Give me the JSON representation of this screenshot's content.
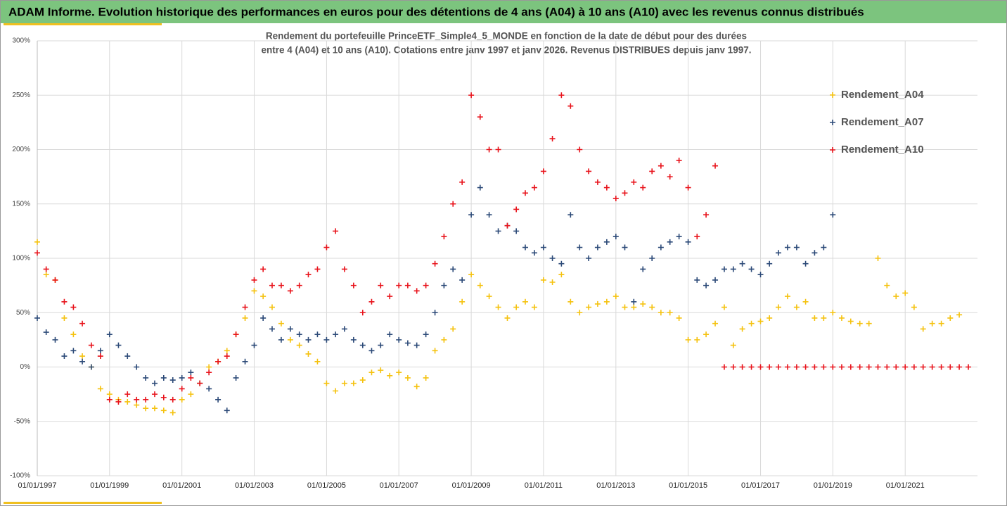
{
  "chart_data": {
    "type": "scatter",
    "title": "ADAM Informe. Evolution historique des performances en euros pour des détentions de 4 ans (A04) à 10 ans (A10) avec les revenus connus distribués",
    "subtitle": [
      "Rendement du portefeuille PrinceETF_Simple4_5_MONDE  en fonction de la date de début pour des durées",
      "entre 4 (A04) et 10 ans (A10). Cotations entre janv 1997 et janv 2026. Revenus DISTRIBUES depuis janv 1997."
    ],
    "x": [
      "1997-01-01",
      "1997-04-01",
      "1997-07-01",
      "1997-10-01",
      "1998-01-01",
      "1998-04-01",
      "1998-07-01",
      "1998-10-01",
      "1999-01-01",
      "1999-04-01",
      "1999-07-01",
      "1999-10-01",
      "2000-01-01",
      "2000-04-01",
      "2000-07-01",
      "2000-10-01",
      "2001-01-01",
      "2001-04-01",
      "2001-07-01",
      "2001-10-01",
      "2002-01-01",
      "2002-04-01",
      "2002-07-01",
      "2002-10-01",
      "2003-01-01",
      "2003-04-01",
      "2003-07-01",
      "2003-10-01",
      "2004-01-01",
      "2004-04-01",
      "2004-07-01",
      "2004-10-01",
      "2005-01-01",
      "2005-04-01",
      "2005-07-01",
      "2005-10-01",
      "2006-01-01",
      "2006-04-01",
      "2006-07-01",
      "2006-10-01",
      "2007-01-01",
      "2007-04-01",
      "2007-07-01",
      "2007-10-01",
      "2008-01-01",
      "2008-04-01",
      "2008-07-01",
      "2008-10-01",
      "2009-01-01",
      "2009-04-01",
      "2009-07-01",
      "2009-10-01",
      "2010-01-01",
      "2010-04-01",
      "2010-07-01",
      "2010-10-01",
      "2011-01-01",
      "2011-04-01",
      "2011-07-01",
      "2011-10-01",
      "2012-01-01",
      "2012-04-01",
      "2012-07-01",
      "2012-10-01",
      "2013-01-01",
      "2013-04-01",
      "2013-07-01",
      "2013-10-01",
      "2014-01-01",
      "2014-04-01",
      "2014-07-01",
      "2014-10-01",
      "2015-01-01",
      "2015-04-01",
      "2015-07-01",
      "2015-10-01",
      "2016-01-01",
      "2016-04-01",
      "2016-07-01",
      "2016-10-01",
      "2017-01-01",
      "2017-04-01",
      "2017-07-01",
      "2017-10-01",
      "2018-01-01",
      "2018-04-01",
      "2018-07-01",
      "2018-10-01",
      "2019-01-01",
      "2019-04-01",
      "2019-07-01",
      "2019-10-01",
      "2020-01-01",
      "2020-04-01",
      "2020-07-01",
      "2020-10-01",
      "2021-01-01",
      "2021-04-01",
      "2021-07-01",
      "2021-10-01",
      "2022-01-01",
      "2022-04-01",
      "2022-07-01",
      "2022-10-01"
    ],
    "series": [
      {
        "name": "Rendement_A04",
        "color": "#f5c20f",
        "values": [
          115,
          85,
          80,
          45,
          30,
          10,
          0,
          -20,
          -25,
          -30,
          -32,
          -35,
          -38,
          -38,
          -40,
          -42,
          -30,
          -25,
          -15,
          0,
          5,
          15,
          30,
          45,
          70,
          65,
          55,
          40,
          25,
          20,
          12,
          5,
          -15,
          -22,
          -15,
          -15,
          -12,
          -5,
          -3,
          -8,
          -5,
          -10,
          -18,
          -10,
          15,
          25,
          35,
          60,
          85,
          75,
          65,
          55,
          45,
          55,
          60,
          55,
          80,
          78,
          85,
          60,
          50,
          55,
          58,
          60,
          65,
          55,
          55,
          58,
          55,
          50,
          50,
          45,
          25,
          25,
          30,
          40,
          55,
          20,
          35,
          40,
          42,
          45,
          55,
          65,
          55,
          60,
          45,
          45,
          50,
          45,
          42,
          40,
          40,
          100,
          75,
          65,
          68,
          55,
          35,
          40,
          40,
          45,
          48,
          null
        ]
      },
      {
        "name": "Rendement_A07",
        "color": "#2c4a78",
        "values": [
          45,
          32,
          25,
          10,
          15,
          5,
          0,
          15,
          30,
          20,
          10,
          0,
          -10,
          -15,
          -10,
          -12,
          -10,
          -5,
          -15,
          -20,
          -30,
          -40,
          -10,
          5,
          20,
          45,
          35,
          25,
          35,
          30,
          25,
          30,
          25,
          30,
          35,
          25,
          20,
          15,
          20,
          30,
          25,
          22,
          20,
          30,
          50,
          75,
          90,
          80,
          140,
          165,
          140,
          125,
          130,
          125,
          110,
          105,
          110,
          100,
          95,
          140,
          110,
          100,
          110,
          115,
          120,
          110,
          60,
          90,
          100,
          110,
          115,
          120,
          115,
          80,
          75,
          80,
          90,
          90,
          95,
          90,
          85,
          95,
          105,
          110,
          110,
          95,
          105,
          110,
          140,
          null,
          null,
          null,
          null,
          null,
          null,
          null,
          null,
          null,
          null,
          null,
          null,
          null,
          null,
          null
        ]
      },
      {
        "name": "Rendement_A10",
        "color": "#e8141c",
        "values": [
          105,
          90,
          80,
          60,
          55,
          40,
          20,
          10,
          -30,
          -32,
          -25,
          -30,
          -30,
          -25,
          -28,
          -30,
          -20,
          -10,
          -15,
          -5,
          5,
          10,
          30,
          55,
          80,
          90,
          75,
          75,
          70,
          75,
          85,
          90,
          110,
          125,
          90,
          75,
          50,
          60,
          75,
          65,
          75,
          75,
          70,
          75,
          95,
          120,
          150,
          170,
          250,
          230,
          200,
          200,
          130,
          145,
          160,
          165,
          180,
          210,
          250,
          240,
          200,
          180,
          170,
          165,
          155,
          160,
          170,
          165,
          180,
          185,
          175,
          190,
          165,
          120,
          140,
          185,
          0,
          0,
          0,
          0,
          0,
          0,
          0,
          0,
          0,
          0,
          0,
          0,
          0,
          0,
          0,
          0,
          0,
          0,
          0,
          0,
          0,
          0,
          0,
          0,
          0,
          0,
          0,
          0
        ]
      }
    ],
    "xlim": [
      "1997-01-01",
      "2023-01-01"
    ],
    "xticks": [
      {
        "value": "1997-01-01",
        "label": "01/01/1997"
      },
      {
        "value": "1999-01-01",
        "label": "01/01/1999"
      },
      {
        "value": "2001-01-01",
        "label": "01/01/2001"
      },
      {
        "value": "2003-01-01",
        "label": "01/01/2003"
      },
      {
        "value": "2005-01-01",
        "label": "01/01/2005"
      },
      {
        "value": "2007-01-01",
        "label": "01/01/2007"
      },
      {
        "value": "2009-01-01",
        "label": "01/01/2009"
      },
      {
        "value": "2011-01-01",
        "label": "01/01/2011"
      },
      {
        "value": "2013-01-01",
        "label": "01/01/2013"
      },
      {
        "value": "2015-01-01",
        "label": "01/01/2015"
      },
      {
        "value": "2017-01-01",
        "label": "01/01/2017"
      },
      {
        "value": "2019-01-01",
        "label": "01/01/2019"
      },
      {
        "value": "2021-01-01",
        "label": "01/01/2021"
      }
    ],
    "ylim": [
      -100,
      300
    ],
    "yticks": [
      {
        "value": -100,
        "label": "-100%"
      },
      {
        "value": -50,
        "label": "-50%"
      },
      {
        "value": 0,
        "label": "0%"
      },
      {
        "value": 50,
        "label": "50%"
      },
      {
        "value": 100,
        "label": "100%"
      },
      {
        "value": 150,
        "label": "150%"
      },
      {
        "value": 200,
        "label": "200%"
      },
      {
        "value": 250,
        "label": "250%"
      },
      {
        "value": 300,
        "label": "300%"
      }
    ],
    "grid": true,
    "legend": "upper right"
  }
}
